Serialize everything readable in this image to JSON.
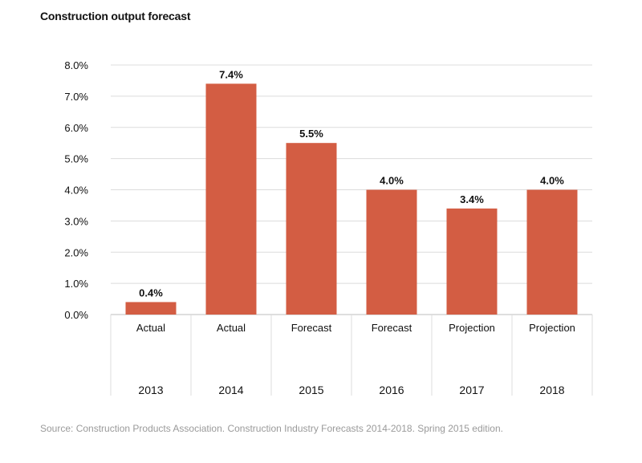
{
  "title": "Construction output forecast",
  "source": "Source: Construction Products Association. Construction Industry Forecasts 2014-2018. Spring 2015 edition.",
  "colors": {
    "bar": "#d35d43",
    "grid": "#dcdcdc"
  },
  "chart_data": {
    "type": "bar",
    "title": "Construction output forecast",
    "categories": [
      "2013",
      "2014",
      "2015",
      "2016",
      "2017",
      "2018"
    ],
    "sublabels": [
      "Actual",
      "Actual",
      "Forecast",
      "Forecast",
      "Projection",
      "Projection"
    ],
    "values": [
      0.4,
      7.4,
      5.5,
      4.0,
      3.4,
      4.0
    ],
    "data_labels": [
      "0.4%",
      "7.4%",
      "5.5%",
      "4.0%",
      "3.4%",
      "4.0%"
    ],
    "yticks": [
      "0.0%",
      "1.0%",
      "2.0%",
      "3.0%",
      "4.0%",
      "5.0%",
      "6.0%",
      "7.0%",
      "8.0%"
    ],
    "ylim": [
      0,
      8
    ],
    "grid": true,
    "legend": "none"
  }
}
